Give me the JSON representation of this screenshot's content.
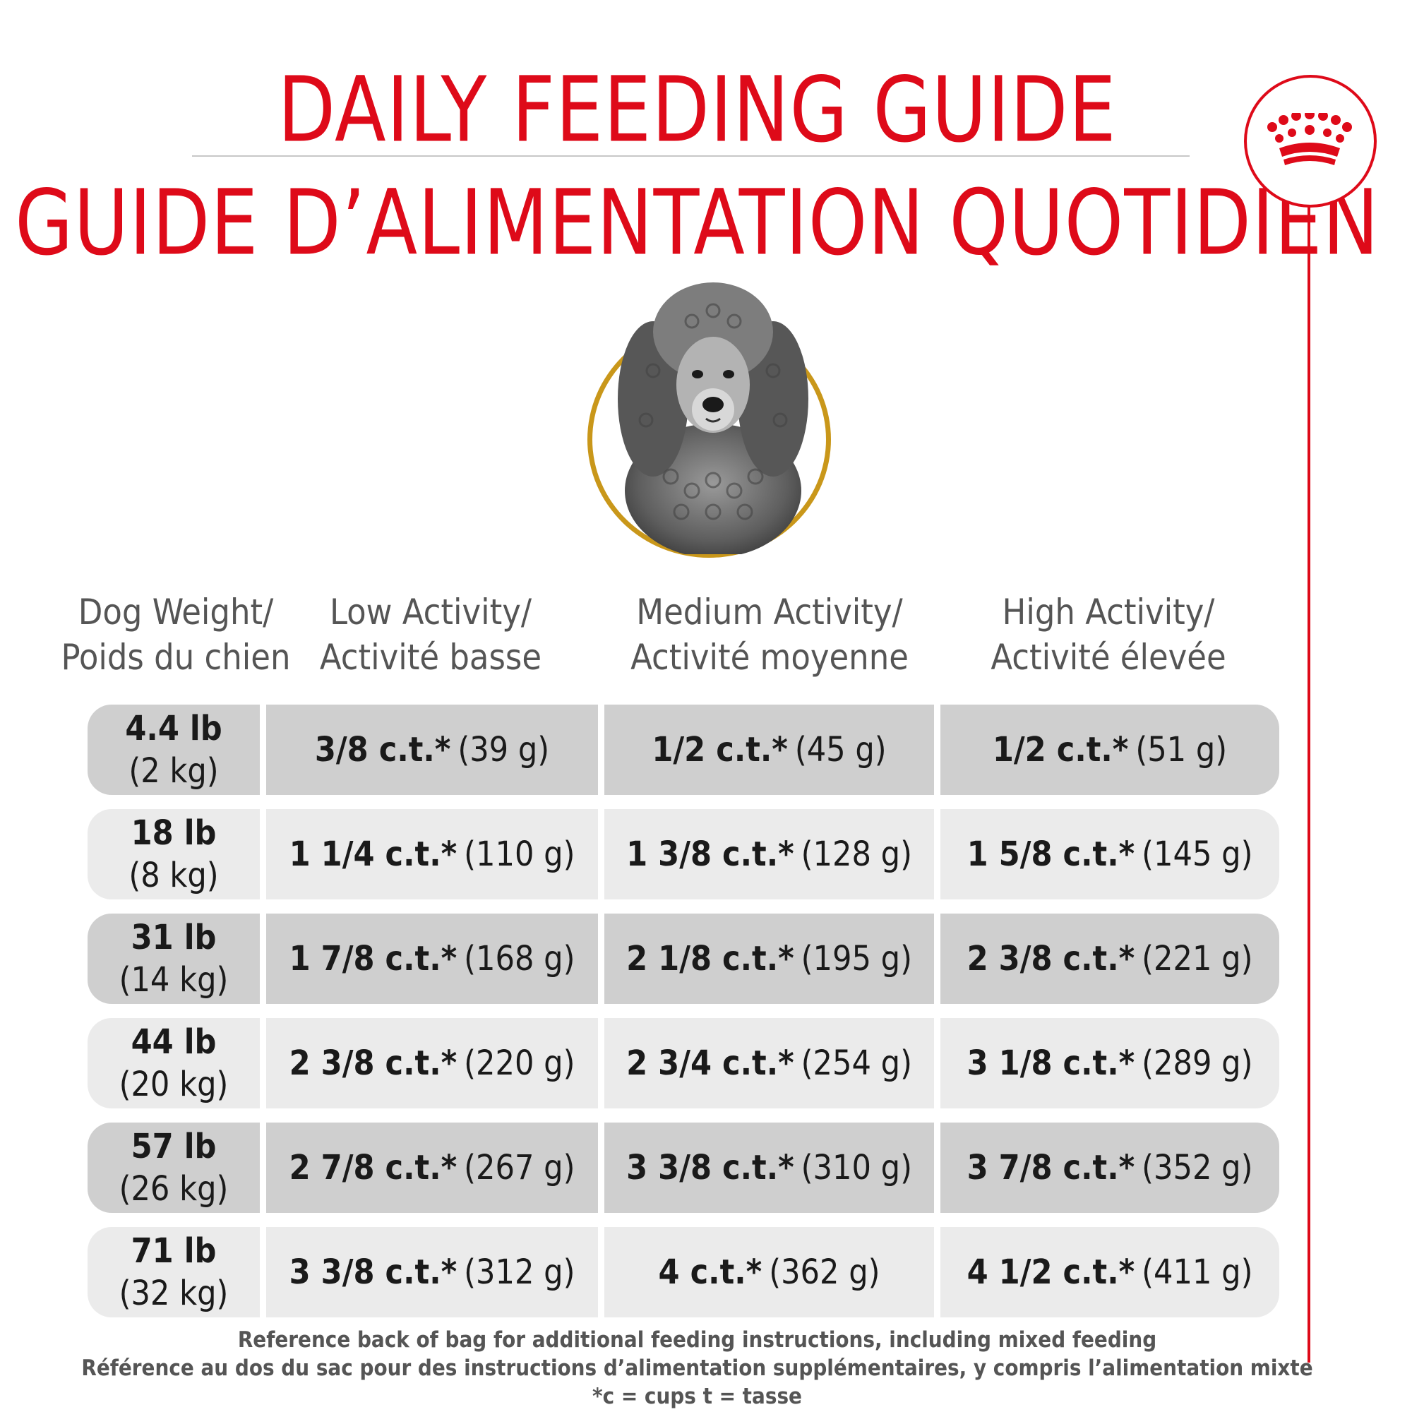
{
  "header": {
    "title_en": "DAILY FEEDING GUIDE",
    "title_fr": "GUIDE D’ALIMENTATION QUOTIDIEN"
  },
  "brand": {
    "logo_icon": "crown-icon",
    "color": "#de0a19"
  },
  "image": {
    "subject_icon": "poodle-dog-icon",
    "ring_color": "#c9971a"
  },
  "columns": [
    {
      "line1": "Dog Weight/",
      "line2": "Poids du chien"
    },
    {
      "line1": "Low Activity/",
      "line2": "Activité basse"
    },
    {
      "line1": "Medium Activity/",
      "line2": "Activité moyenne"
    },
    {
      "line1": "High Activity/",
      "line2": "Activité élevée"
    }
  ],
  "rows": [
    {
      "lb": "4.4 lb",
      "kg": "(2 kg)",
      "low": {
        "amount": "3/8 c.t.*",
        "grams": "(39 g)"
      },
      "med": {
        "amount": "1/2 c.t.*",
        "grams": "(45 g)"
      },
      "high": {
        "amount": "1/2 c.t.*",
        "grams": "(51 g)"
      }
    },
    {
      "lb": "18 lb",
      "kg": "(8 kg)",
      "low": {
        "amount": "1 1/4 c.t.*",
        "grams": "(110 g)"
      },
      "med": {
        "amount": "1 3/8 c.t.*",
        "grams": "(128 g)"
      },
      "high": {
        "amount": "1 5/8 c.t.*",
        "grams": "(145 g)"
      }
    },
    {
      "lb": "31 lb",
      "kg": "(14 kg)",
      "low": {
        "amount": "1 7/8 c.t.*",
        "grams": "(168 g)"
      },
      "med": {
        "amount": "2 1/8 c.t.*",
        "grams": "(195 g)"
      },
      "high": {
        "amount": "2 3/8 c.t.*",
        "grams": "(221 g)"
      }
    },
    {
      "lb": "44 lb",
      "kg": "(20 kg)",
      "low": {
        "amount": "2 3/8 c.t.*",
        "grams": "(220 g)"
      },
      "med": {
        "amount": "2 3/4 c.t.*",
        "grams": "(254 g)"
      },
      "high": {
        "amount": "3 1/8 c.t.*",
        "grams": "(289 g)"
      }
    },
    {
      "lb": "57 lb",
      "kg": "(26 kg)",
      "low": {
        "amount": "2 7/8 c.t.*",
        "grams": "(267 g)"
      },
      "med": {
        "amount": "3 3/8 c.t.*",
        "grams": "(310 g)"
      },
      "high": {
        "amount": "3 7/8 c.t.*",
        "grams": "(352 g)"
      }
    },
    {
      "lb": "71 lb",
      "kg": "(32 kg)",
      "low": {
        "amount": "3 3/8 c.t.*",
        "grams": "(312 g)"
      },
      "med": {
        "amount": "4 c.t.*",
        "grams": "(362 g)"
      },
      "high": {
        "amount": "4 1/2 c.t.*",
        "grams": "(411 g)"
      }
    }
  ],
  "footer": {
    "line1": "Reference back of bag for additional feeding instructions, including mixed feeding",
    "line2": "Référence au dos du sac pour des instructions d’alimentation supplémentaires, y compris l’alimentation mixte",
    "line3": "*c = cups t = tasse"
  }
}
